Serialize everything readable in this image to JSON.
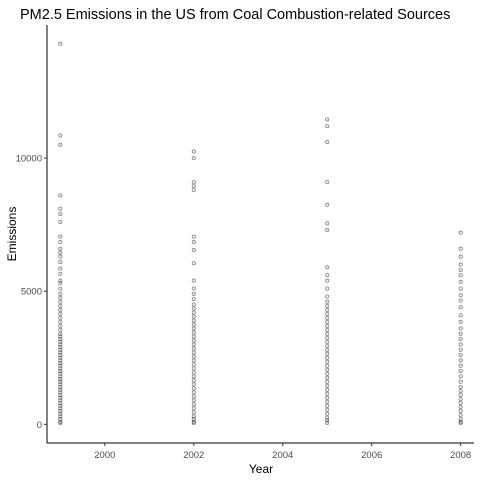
{
  "chart_data": {
    "type": "scatter",
    "title": "PM2.5 Emissions in the US from Coal Combustion-related Sources",
    "xlabel": "Year",
    "ylabel": "Emissions",
    "xlim": [
      1998.7,
      2008.3
    ],
    "ylim": [
      -700,
      15000
    ],
    "xticks": [
      2000,
      2002,
      2004,
      2006,
      2008
    ],
    "yticks": [
      0,
      5000,
      10000
    ],
    "xtick_labels": [
      "2000",
      "2002",
      "2004",
      "2006",
      "2008"
    ],
    "ytick_labels": [
      "0",
      "5000",
      "10000"
    ],
    "grid": false,
    "legend": "none",
    "point_color": "#000000",
    "point_alpha": 0.3,
    "series": [
      {
        "x": 1999,
        "values": [
          14300,
          10850,
          10500,
          8600,
          8100,
          7900,
          7600,
          7050,
          6850,
          6600,
          6450,
          6300,
          6100,
          5850,
          5650,
          5400,
          5300,
          5100,
          4900,
          4750,
          4600,
          4450,
          4300,
          4150,
          4000,
          3850,
          3700,
          3550,
          3400,
          3300,
          3200,
          3100,
          3000,
          2900,
          2800,
          2700,
          2600,
          2500,
          2400,
          2300,
          2200,
          2100,
          2000,
          1900,
          1800,
          1700,
          1600,
          1500,
          1400,
          1300,
          1200,
          1100,
          1000,
          900,
          800,
          700,
          600,
          500,
          400,
          300,
          200,
          100,
          50
        ]
      },
      {
        "x": 2002,
        "values": [
          10250,
          10000,
          9100,
          8950,
          8800,
          7050,
          6850,
          6550,
          6050,
          5400,
          5100,
          4900,
          4700,
          4500,
          4350,
          4200,
          4050,
          3900,
          3750,
          3600,
          3450,
          3300,
          3150,
          3000,
          2850,
          2700,
          2550,
          2400,
          2250,
          2100,
          1950,
          1800,
          1650,
          1500,
          1350,
          1200,
          1050,
          900,
          750,
          600,
          450,
          300,
          200,
          100,
          50
        ]
      },
      {
        "x": 2005,
        "values": [
          11450,
          11200,
          10600,
          9100,
          8250,
          7550,
          7300,
          5900,
          5600,
          5400,
          5100,
          4800,
          4600,
          4450,
          4300,
          4150,
          4000,
          3850,
          3700,
          3550,
          3400,
          3250,
          3100,
          2950,
          2800,
          2650,
          2500,
          2350,
          2200,
          2050,
          1900,
          1750,
          1600,
          1450,
          1300,
          1150,
          1000,
          850,
          700,
          550,
          400,
          250,
          150,
          50
        ]
      },
      {
        "x": 2008,
        "values": [
          7200,
          6600,
          6300,
          6000,
          5800,
          5600,
          5350,
          5100,
          4850,
          4650,
          4400,
          4100,
          3850,
          3600,
          3400,
          3200,
          3000,
          2800,
          2600,
          2400,
          2200,
          2000,
          1800,
          1600,
          1400,
          1250,
          1100,
          950,
          800,
          650,
          500,
          350,
          200,
          100,
          50
        ]
      }
    ]
  }
}
